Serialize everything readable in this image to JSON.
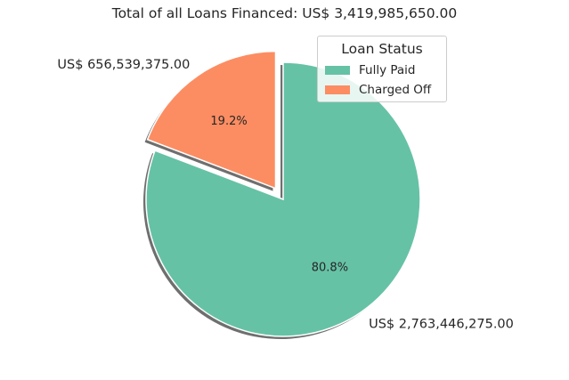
{
  "chart_data": {
    "type": "pie",
    "title": "Total of all Loans Financed: US$ 3,419,985,650.00",
    "legend_title": "Loan Status",
    "legend_position": "top-right",
    "slices": [
      {
        "label": "Fully Paid",
        "percent": 80.8,
        "percent_label": "80.8%",
        "value": 2763446275,
        "value_label": "US$ 2,763,446,275.00",
        "color": "#66c2a5",
        "exploded": false
      },
      {
        "label": "Charged Off",
        "percent": 19.2,
        "percent_label": "19.2%",
        "value": 656539375,
        "value_label": "US$ 656,539,375.00",
        "color": "#fc8d62",
        "exploded": true
      }
    ],
    "shadow": true
  }
}
